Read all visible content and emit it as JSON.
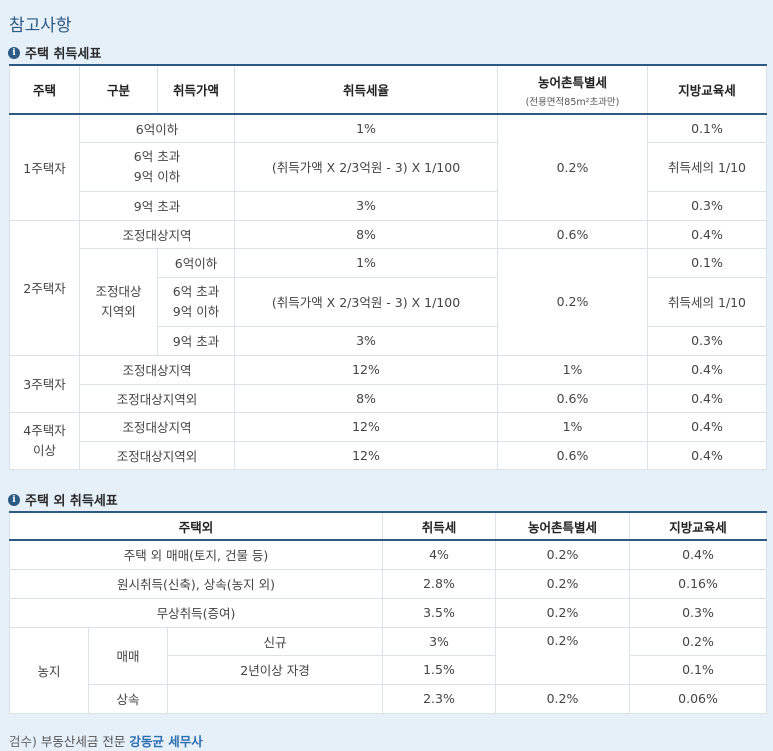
{
  "page_title": "참고사항",
  "section1": {
    "icon": "info-icon",
    "title": "주택 취득세표",
    "headers": {
      "housing": "주택",
      "category": "구분",
      "price": "취득가액",
      "rate": "취득세율",
      "rural": "농어촌특별세",
      "rural_sub": "(전용면적85m²초과만)",
      "edu": "지방교육세"
    },
    "one": {
      "label": "1주택자",
      "r1_cat": "6억이하",
      "r1_rate": "1%",
      "r1_edu": "0.1%",
      "r2_cat": "6억 초과\n9억 이하",
      "r2_rate": "(취득가액 X 2/3억원 - 3) X 1/100",
      "r2_edu": "취득세의 1/10",
      "r3_cat": "9억 초과",
      "r3_rate": "3%",
      "r3_edu": "0.3%",
      "rural": "0.2%"
    },
    "two": {
      "label": "2주택자",
      "adj_cat": "조정대상지역",
      "adj_rate": "8%",
      "adj_rural": "0.6%",
      "adj_edu": "0.4%",
      "nonadj_cat": "조정대상\n지역외",
      "r1_price": "6억이하",
      "r1_rate": "1%",
      "r1_edu": "0.1%",
      "r2_price": "6억 초과\n9억 이하",
      "r2_rate": "(취득가액 X 2/3억원 - 3) X 1/100",
      "r2_edu": "취득세의 1/10",
      "r3_price": "9억 초과",
      "r3_rate": "3%",
      "r3_edu": "0.3%",
      "rural": "0.2%"
    },
    "three": {
      "label": "3주택자",
      "adj_cat": "조정대상지역",
      "adj_rate": "12%",
      "adj_rural": "1%",
      "adj_edu": "0.4%",
      "nonadj_cat": "조정대상지역외",
      "nonadj_rate": "8%",
      "nonadj_rural": "0.6%",
      "nonadj_edu": "0.4%"
    },
    "four": {
      "label": "4주택자\n이상",
      "adj_cat": "조정대상지역",
      "adj_rate": "12%",
      "adj_rural": "1%",
      "adj_edu": "0.4%",
      "nonadj_cat": "조정대상지역외",
      "nonadj_rate": "12%",
      "nonadj_rural": "0.6%",
      "nonadj_edu": "0.4%"
    }
  },
  "section2": {
    "icon": "info-icon",
    "title": "주택 외 취득세표",
    "headers": {
      "non_housing": "주택외",
      "tax": "취득세",
      "rural": "농어촌특별세",
      "edu": "지방교육세"
    },
    "rows": [
      {
        "label": "주택 외 매매(토지, 건물 등)",
        "tax": "4%",
        "rural": "0.2%",
        "edu": "0.4%"
      },
      {
        "label": "원시취득(신축), 상속(농지 외)",
        "tax": "2.8%",
        "rural": "0.2%",
        "edu": "0.16%"
      },
      {
        "label": "무상취득(증여)",
        "tax": "3.5%",
        "rural": "0.2%",
        "edu": "0.3%"
      }
    ],
    "farmland": {
      "label": "농지",
      "trade": "매매",
      "new_label": "신규",
      "new_tax": "3%",
      "new_edu": "0.2%",
      "trade_rural": "0.2%",
      "self_label": "2년이상 자경",
      "self_tax": "1.5%",
      "self_edu": "0.1%",
      "inherit": "상속",
      "inherit_tax": "2.3%",
      "inherit_rural": "0.2%",
      "inherit_edu": "0.06%"
    }
  },
  "footer": {
    "prefix": "검수)",
    "text": "부동산세금 전문",
    "name": "강동균 세무사"
  }
}
